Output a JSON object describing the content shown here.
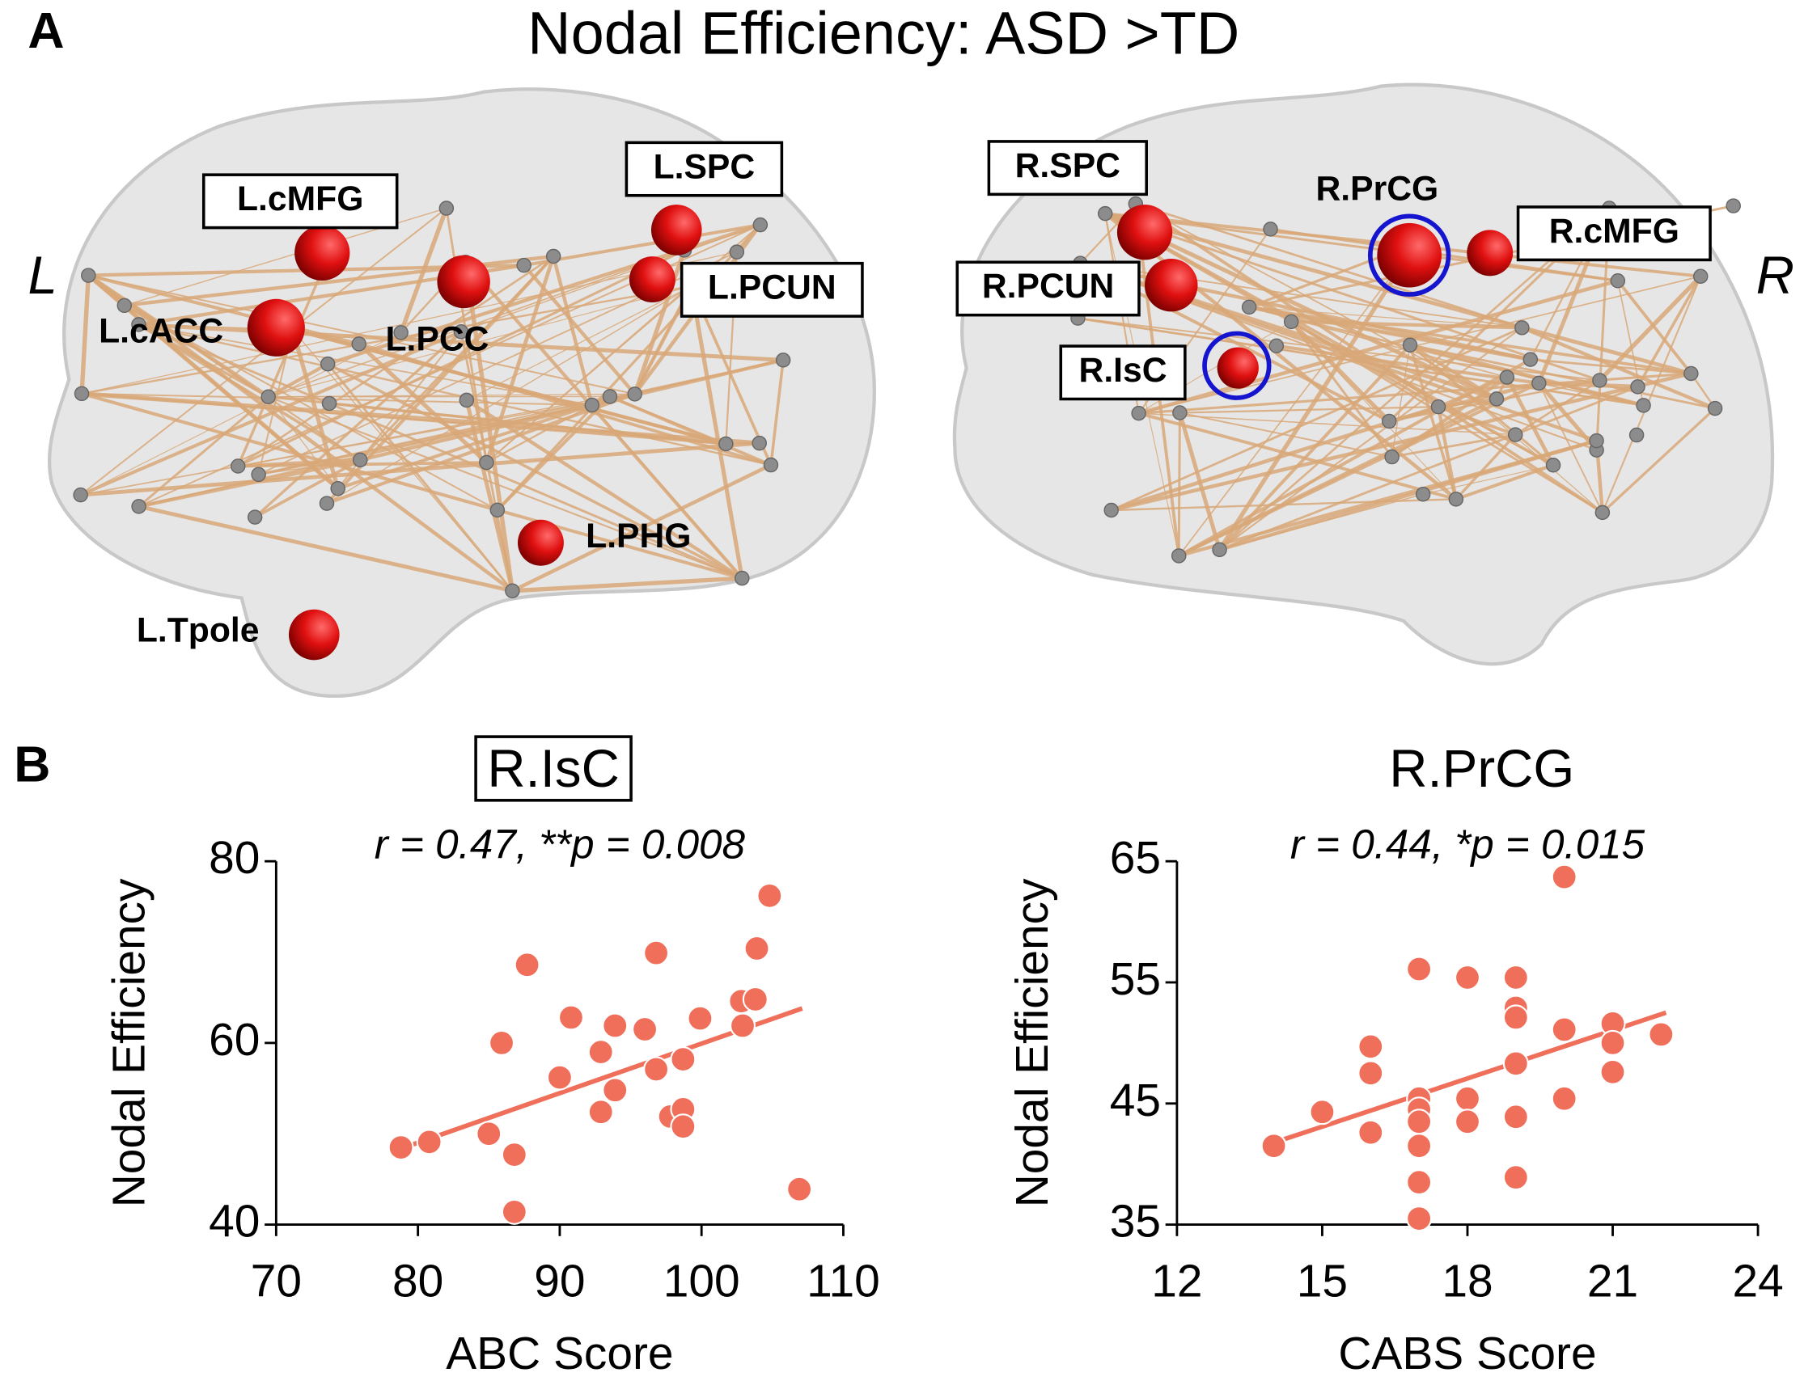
{
  "panel_labels": [
    "A",
    "B"
  ],
  "title": "Nodal Efficiency: ASD >TD",
  "hemisphere_labels": [
    "L",
    "R"
  ],
  "brain_labels": {
    "left": [
      "L.cMFG",
      "L.SPC",
      "L.PCUN",
      "L.cACC",
      "L.PCC",
      "L.PHG",
      "L.Tpole"
    ],
    "right": [
      "R.SPC",
      "R.PrCG",
      "R.cMFG",
      "R.PCUN",
      "R.IsC"
    ]
  },
  "chart_data": [
    {
      "type": "scatter",
      "title": "R.IsC",
      "annotation": "r = 0.47, **p = 0.008",
      "x_label": "ABC Score",
      "y_label": "Nodal Efficiency",
      "color": "#ef6f5a",
      "xlim": [
        70,
        110
      ],
      "xticks": [
        70,
        80,
        90,
        100,
        110
      ],
      "ylim": [
        40,
        80
      ],
      "yticks": [
        40,
        60,
        80
      ],
      "x": [
        78.8,
        80.8,
        85.0,
        85.9,
        86.8,
        86.8,
        87.7,
        90.0,
        90.8,
        92.9,
        92.9,
        93.9,
        93.9,
        96.0,
        96.8,
        96.8,
        97.8,
        98.7,
        98.7,
        98.7,
        99.9,
        102.8,
        102.9,
        103.9,
        103.8,
        104.8,
        106.9
      ],
      "values": [
        48.5,
        49.1,
        50.0,
        60.0,
        47.7,
        41.4,
        68.6,
        56.2,
        62.8,
        59.0,
        52.4,
        61.9,
        54.8,
        61.5,
        69.9,
        57.1,
        51.9,
        58.2,
        52.7,
        50.8,
        62.7,
        64.6,
        61.9,
        70.4,
        64.8,
        76.2,
        43.9
      ],
      "fit": {
        "x": [
          78.5,
          107.1
        ],
        "y": [
          48.2,
          63.8
        ]
      }
    },
    {
      "type": "scatter",
      "title": "R.PrCG",
      "annotation": "r = 0.44, *p = 0.015",
      "x_label": "CABS Score",
      "y_label": "Nodal Efficiency",
      "color": "#ef6f5a",
      "xlim": [
        12,
        24
      ],
      "xticks": [
        12,
        15,
        18,
        21,
        24
      ],
      "ylim": [
        35,
        65
      ],
      "yticks": [
        35,
        45,
        55,
        65
      ],
      "x": [
        14,
        15,
        16,
        16,
        16,
        17,
        17,
        17,
        17,
        17,
        17,
        17,
        18,
        18,
        18,
        19,
        19,
        19,
        19,
        19,
        19,
        20,
        20,
        20,
        21,
        21,
        21,
        22
      ],
      "values": [
        41.5,
        44.3,
        49.7,
        47.5,
        42.6,
        56.1,
        45.4,
        44.5,
        43.5,
        41.5,
        38.5,
        35.5,
        55.4,
        45.4,
        43.5,
        55.4,
        52.9,
        52.1,
        48.3,
        43.9,
        38.9,
        63.7,
        51.1,
        45.4,
        51.6,
        50.0,
        47.6,
        50.7
      ],
      "fit": {
        "x": [
          13.8,
          22.1
        ],
        "y": [
          41.5,
          52.5
        ]
      }
    }
  ]
}
